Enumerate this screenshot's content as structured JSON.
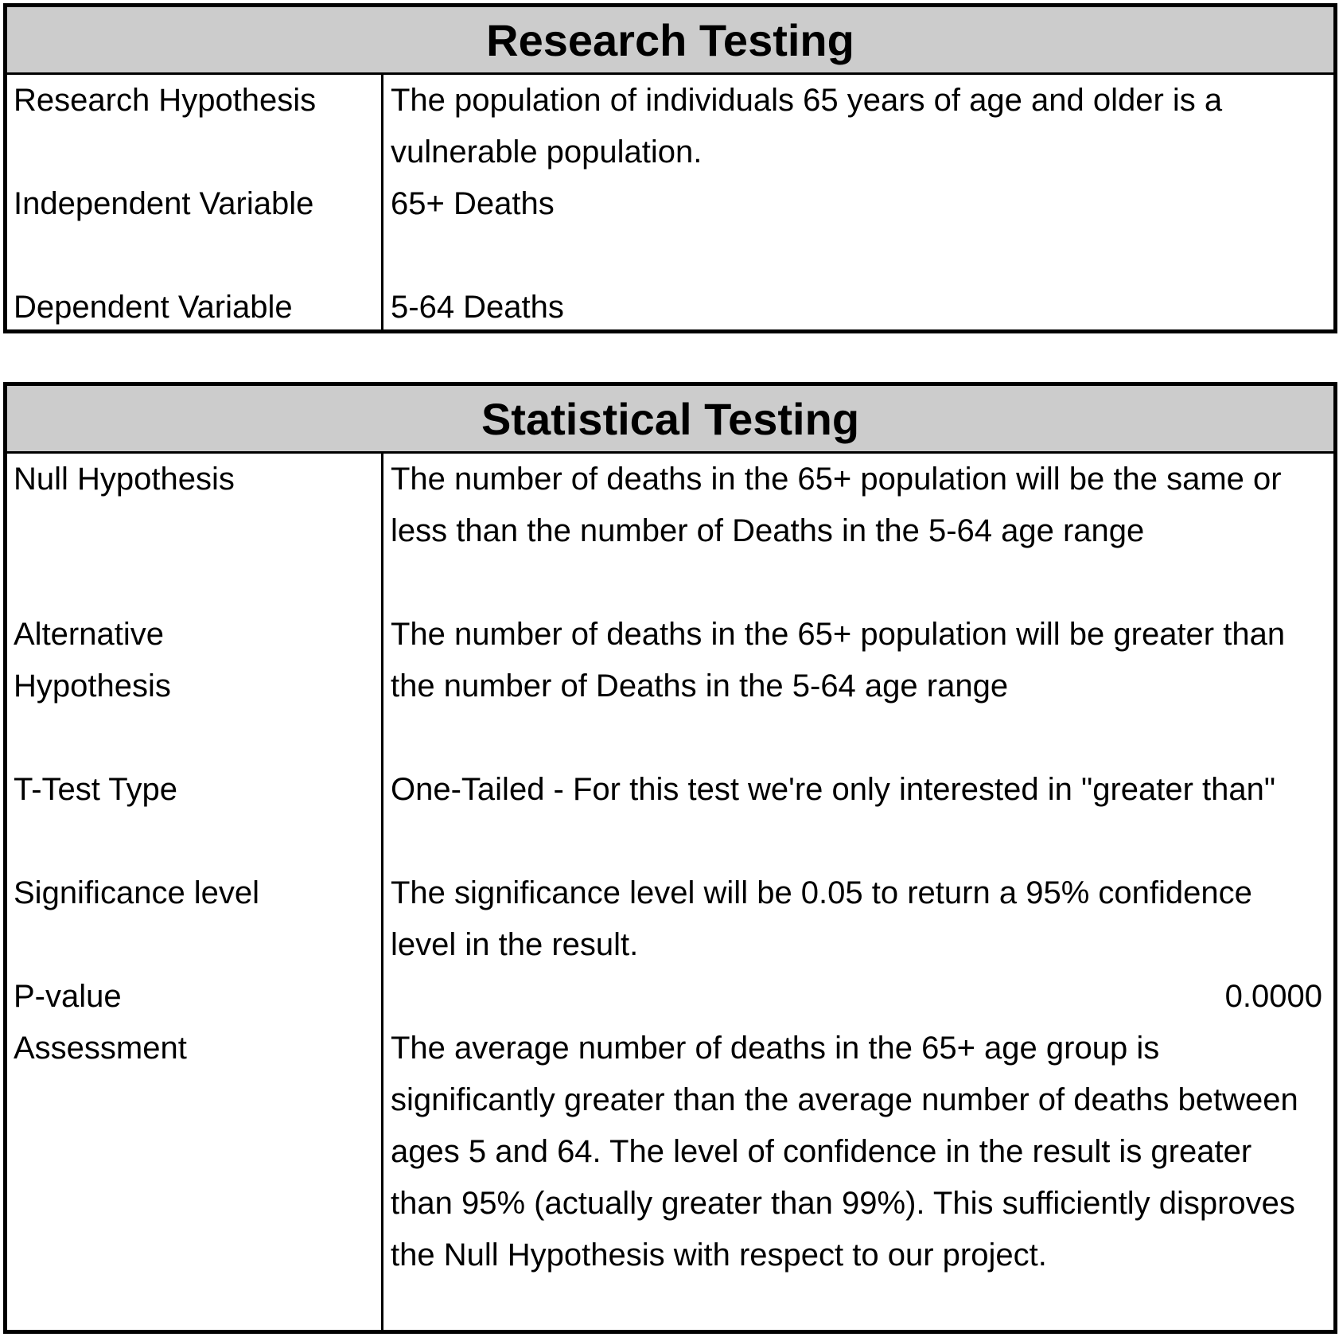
{
  "research_testing": {
    "title": "Research Testing",
    "rows": [
      {
        "label": "Research Hypothesis",
        "value": "The population of individuals 65 years of age and older is a vulnerable population."
      },
      {
        "label": "Independent Variable",
        "value": "65+ Deaths"
      },
      {
        "label": "Dependent Variable",
        "value": "5-64 Deaths"
      }
    ]
  },
  "statistical_testing": {
    "title": "Statistical Testing",
    "rows": [
      {
        "label": "Null Hypothesis",
        "value": "The number of deaths in the 65+ population will be the same or less than the number of Deaths in the 5-64 age range"
      },
      {
        "label": "Alternative Hypothesis",
        "value": "The number of deaths in the 65+ population will be greater than the number of Deaths in the 5-64 age range"
      },
      {
        "label": "T-Test Type",
        "value": "One-Tailed - For this test we're only interested in \"greater than\""
      },
      {
        "label": "Significance level",
        "value": "The significance level will be 0.05 to return a 95% confidence level in the result."
      },
      {
        "label": "P-value",
        "value": "0.0000"
      },
      {
        "label": "Assessment",
        "value": "The average number of deaths in the 65+ age group is significantly greater than the average number of deaths between ages 5 and 64.  The level of confidence in the result is greater than 95% (actually greater than 99%).  This sufficiently disproves the Null Hypothesis with respect to our project."
      }
    ]
  }
}
